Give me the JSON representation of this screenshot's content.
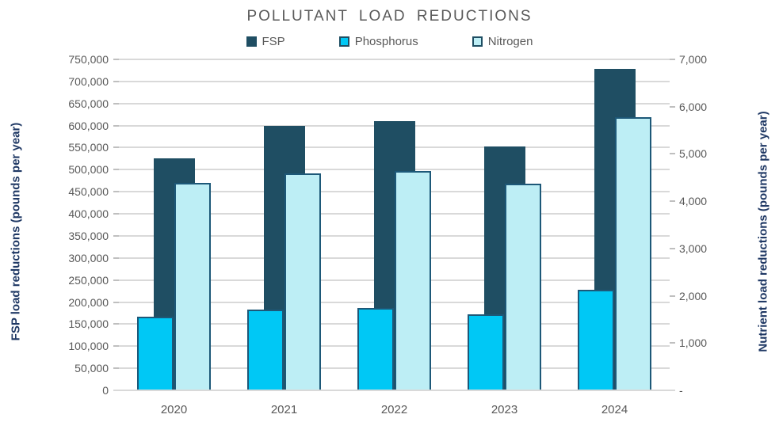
{
  "title": "POLLUTANT LOAD REDUCTIONS",
  "legend": {
    "items": [
      {
        "label": "FSP"
      },
      {
        "label": "Phosphorus"
      },
      {
        "label": "Nitrogen"
      }
    ]
  },
  "left_axis": {
    "title": "FSP load reductions (pounds per year)",
    "tick_labels": [
      "750,000",
      "700,000",
      "650,000",
      "600,000",
      "550,000",
      "500,000",
      "450,000",
      "400,000",
      "350,000",
      "300,000",
      "250,000",
      "200,000",
      "150,000",
      "100,000",
      "50,000",
      "0"
    ],
    "max": 750000
  },
  "right_axis": {
    "title": "Nutrient load reductions (pounds per year)",
    "tick_labels": [
      "7,000",
      "6,000",
      "5,000",
      "4,000",
      "3,000",
      "2,000",
      "1,000",
      "-"
    ],
    "max": 7000
  },
  "colors": {
    "fsp_fill": "#1F4E63",
    "phosphorus_fill": "#00C8F5",
    "nitrogen_fill": "#BDEEF5",
    "bar_border": "#1D5878",
    "gridline": "#D9D9D9",
    "tick_text": "#595959",
    "axis_title_text": "#1F3864"
  },
  "chart_data": {
    "type": "bar",
    "title": "POLLUTANT LOAD REDUCTIONS",
    "categories": [
      "2020",
      "2021",
      "2022",
      "2023",
      "2024"
    ],
    "series": [
      {
        "name": "FSP",
        "axis": "left",
        "values": [
          525000,
          600000,
          610000,
          553000,
          728000
        ]
      },
      {
        "name": "Phosphorus",
        "axis": "right",
        "values": [
          1560,
          1700,
          1750,
          1600,
          2120
        ]
      },
      {
        "name": "Nitrogen",
        "axis": "right",
        "values": [
          4380,
          4590,
          4640,
          4370,
          5780
        ]
      }
    ],
    "left_ylabel": "FSP load reductions (pounds per year)",
    "right_ylabel": "Nutrient load reductions (pounds per year)",
    "left_ylim": [
      0,
      750000
    ],
    "right_ylim": [
      0,
      7000
    ],
    "left_tick_step": 50000,
    "right_tick_step": 1000,
    "grid": true,
    "legend_position": "top"
  }
}
